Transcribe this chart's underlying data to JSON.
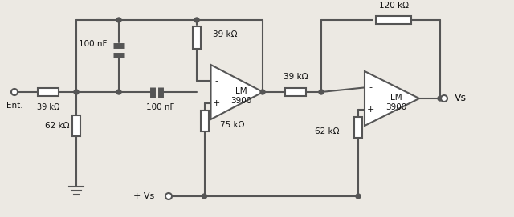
{
  "bg_color": "#ece9e3",
  "line_color": "#555555",
  "line_width": 1.5,
  "fill_color": "#555555",
  "text_color": "#111111",
  "labels": {
    "ent": "Ent.",
    "vs_out": "Vs",
    "plus_vs": "+ Vs",
    "r1": "39 kΩ",
    "r2": "62 kΩ",
    "c1": "100 nF",
    "c2": "100 nF",
    "r3": "39 kΩ",
    "r4": "75 kΩ",
    "r5": "39 kΩ",
    "r6": "62 kΩ",
    "r7": "120 kΩ",
    "lm1": "LM\n3900",
    "lm2": "LM\n3900"
  }
}
